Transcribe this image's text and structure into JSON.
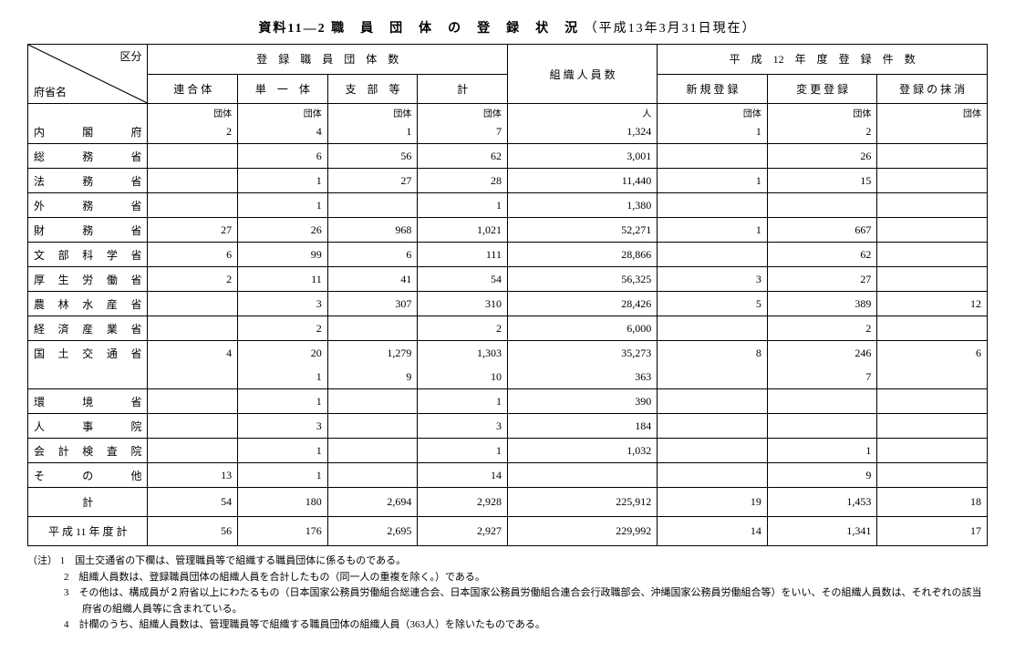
{
  "title_prefix": "資料11―2",
  "title_main": "職　員　団　体　の　登　録　状　況",
  "title_date": "（平成13年3月31日現在）",
  "corner_top": "区分",
  "corner_bottom": "府省名",
  "header_group1": "登　録　職　員　団　体　数",
  "header_group2": "組 織 人 員 数",
  "header_group3": "平　成　12　年　度　登　録　件　数",
  "sub1": "連 合 体",
  "sub2": "単　一　体",
  "sub3": "支　部　等",
  "sub4": "計",
  "sub5": "新 規 登 録",
  "sub6": "変 更 登 録",
  "sub7": "登 録 の 抹 消",
  "unit_dantai": "団体",
  "unit_nin": "人",
  "rows": [
    {
      "n": "内　　閣　　府",
      "v": [
        "2",
        "4",
        "1",
        "7",
        "1,324",
        "1",
        "2",
        ""
      ]
    },
    {
      "n": "総　　務　　省",
      "v": [
        "",
        "6",
        "56",
        "62",
        "3,001",
        "",
        "26",
        ""
      ]
    },
    {
      "n": "法　　務　　省",
      "v": [
        "",
        "1",
        "27",
        "28",
        "11,440",
        "1",
        "15",
        ""
      ]
    },
    {
      "n": "外　　務　　省",
      "v": [
        "",
        "1",
        "",
        "1",
        "1,380",
        "",
        "",
        ""
      ]
    },
    {
      "n": "財　　務　　省",
      "v": [
        "27",
        "26",
        "968",
        "1,021",
        "52,271",
        "1",
        "667",
        ""
      ]
    },
    {
      "n": "文 部 科 学 省",
      "v": [
        "6",
        "99",
        "6",
        "111",
        "28,866",
        "",
        "62",
        ""
      ]
    },
    {
      "n": "厚 生 労 働 省",
      "v": [
        "2",
        "11",
        "41",
        "54",
        "56,325",
        "3",
        "27",
        ""
      ]
    },
    {
      "n": "農 林 水 産 省",
      "v": [
        "",
        "3",
        "307",
        "310",
        "28,426",
        "5",
        "389",
        "12"
      ]
    },
    {
      "n": "経 済 産 業 省",
      "v": [
        "",
        "2",
        "",
        "2",
        "6,000",
        "",
        "2",
        ""
      ]
    },
    {
      "n": "国 土 交 通 省",
      "v": [
        "4",
        "20",
        "1,279",
        "1,303",
        "35,273",
        "8",
        "246",
        "6"
      ]
    },
    {
      "n": "",
      "v": [
        "",
        "1",
        "9",
        "10",
        "363",
        "",
        "7",
        ""
      ],
      "sub": true
    },
    {
      "n": "環　　境　　省",
      "v": [
        "",
        "1",
        "",
        "1",
        "390",
        "",
        "",
        ""
      ]
    },
    {
      "n": "人　　事　　院",
      "v": [
        "",
        "3",
        "",
        "3",
        "184",
        "",
        "",
        ""
      ]
    },
    {
      "n": "会 計 検 査 院",
      "v": [
        "",
        "1",
        "",
        "1",
        "1,032",
        "",
        "1",
        ""
      ]
    },
    {
      "n": "そ　　の　　他",
      "v": [
        "13",
        "1",
        "",
        "14",
        "",
        "",
        "9",
        ""
      ]
    }
  ],
  "total_label": "計",
  "total": [
    "54",
    "180",
    "2,694",
    "2,928",
    "225,912",
    "19",
    "1,453",
    "18"
  ],
  "prev_label": "平 成 11 年 度 計",
  "prev": [
    "56",
    "176",
    "2,695",
    "2,927",
    "229,992",
    "14",
    "1,341",
    "17"
  ],
  "note_head": "（注）",
  "note1": "1　国土交通省の下欄は、管理職員等で組織する職員団体に係るものである。",
  "note2": "2　組織人員数は、登録職員団体の組織人員を合計したもの（同一人の重複を除く。）である。",
  "note3": "3　その他は、構成員が２府省以上にわたるもの（日本国家公務員労働組合総連合会、日本国家公務員労働組合連合会行政職部会、沖縄国家公務員労働組合等）をいい、その組織人員数は、それぞれの該当府省の組織人員等に含まれている。",
  "note4": "4　計欄のうち、組織人員数は、管理職員等で組織する職員団体の組織人員（363人）を除いたものである。"
}
